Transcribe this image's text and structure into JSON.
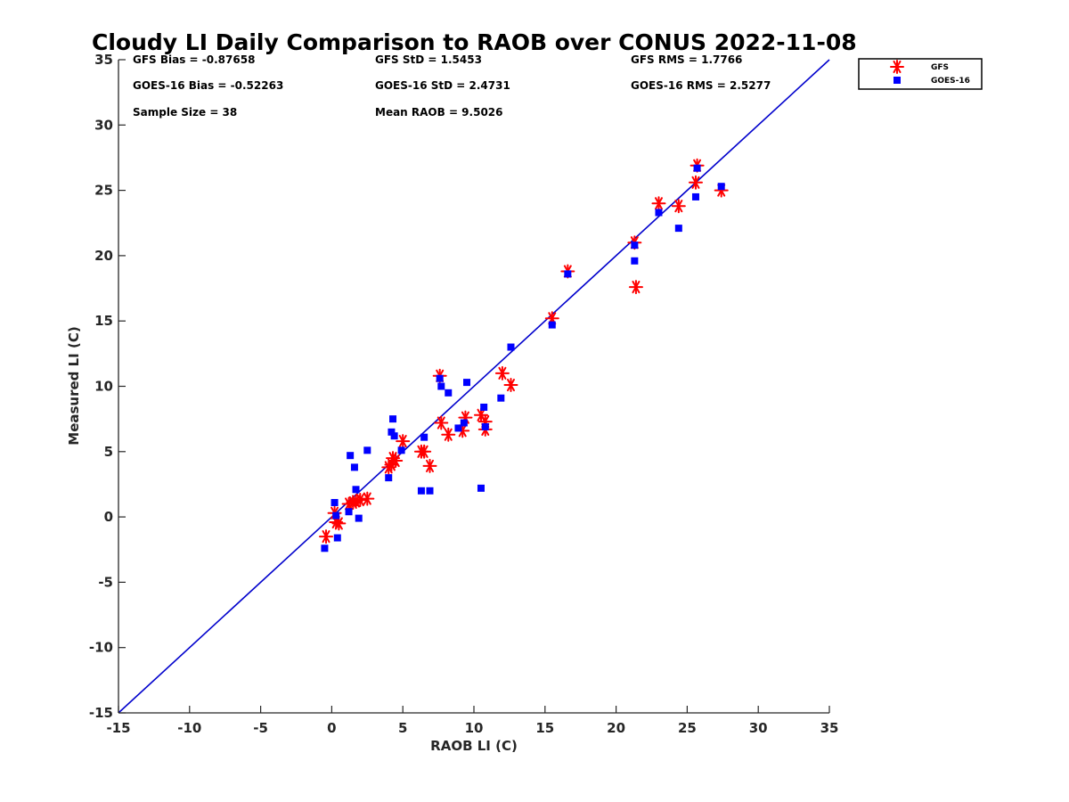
{
  "chart_data": {
    "type": "scatter",
    "title": "Cloudy LI Daily Comparison to RAOB over CONUS 2022-11-08",
    "xlabel": "RAOB LI (C)",
    "ylabel": "Measured LI (C)",
    "xlim": [
      -15,
      35
    ],
    "ylim": [
      -15,
      35
    ],
    "xticks": [
      "-15",
      "-10",
      "-5",
      "0",
      "5",
      "10",
      "15",
      "20",
      "25",
      "30",
      "35"
    ],
    "yticks": [
      "-15",
      "-10",
      "-5",
      "0",
      "5",
      "10",
      "15",
      "20",
      "25",
      "30",
      "35"
    ],
    "grid": false,
    "legend_position": "outside-top-right",
    "stats": [
      "GFS Bias = -0.87658",
      "GFS StD = 1.5453",
      "GFS RMS = 1.7766",
      "GOES-16 Bias = -0.52263",
      "GOES-16 StD = 2.4731",
      "GOES-16 RMS = 2.5277",
      "Sample Size = 38",
      "Mean RAOB = 9.5026"
    ],
    "reference_line": {
      "x": [
        -15,
        35
      ],
      "y": [
        -15,
        35
      ],
      "color": "#0000cc"
    },
    "series": [
      {
        "name": "GFS",
        "marker": "asterisk",
        "color": "#ff0000",
        "points": [
          [
            -0.4,
            -1.5
          ],
          [
            0.2,
            0.3
          ],
          [
            0.3,
            -0.4
          ],
          [
            0.5,
            -0.5
          ],
          [
            1.2,
            1.0
          ],
          [
            1.5,
            1.1
          ],
          [
            1.7,
            1.2
          ],
          [
            2.0,
            1.3
          ],
          [
            2.5,
            1.4
          ],
          [
            4.0,
            3.8
          ],
          [
            4.2,
            4.0
          ],
          [
            4.3,
            4.5
          ],
          [
            4.5,
            4.3
          ],
          [
            5.0,
            5.8
          ],
          [
            6.3,
            5.0
          ],
          [
            6.5,
            5.0
          ],
          [
            6.9,
            3.9
          ],
          [
            7.6,
            10.8
          ],
          [
            7.7,
            7.2
          ],
          [
            8.2,
            6.3
          ],
          [
            9.2,
            6.6
          ],
          [
            9.4,
            7.6
          ],
          [
            10.5,
            7.8
          ],
          [
            10.8,
            6.7
          ],
          [
            10.8,
            7.3
          ],
          [
            12.0,
            11.0
          ],
          [
            12.6,
            10.1
          ],
          [
            15.5,
            15.2
          ],
          [
            16.6,
            18.8
          ],
          [
            21.3,
            21.0
          ],
          [
            21.4,
            17.6
          ],
          [
            23.0,
            24.0
          ],
          [
            24.4,
            23.8
          ],
          [
            25.6,
            25.6
          ],
          [
            25.7,
            26.9
          ],
          [
            27.4,
            25.0
          ]
        ]
      },
      {
        "name": "GOES-16",
        "marker": "square",
        "color": "#0000ff",
        "points": [
          [
            -0.5,
            -2.4
          ],
          [
            0.2,
            1.1
          ],
          [
            0.3,
            0.1
          ],
          [
            0.4,
            -1.6
          ],
          [
            1.2,
            0.4
          ],
          [
            1.3,
            4.7
          ],
          [
            1.6,
            3.8
          ],
          [
            1.7,
            2.1
          ],
          [
            1.9,
            -0.1
          ],
          [
            2.5,
            5.1
          ],
          [
            4.0,
            3.0
          ],
          [
            4.2,
            6.5
          ],
          [
            4.3,
            7.5
          ],
          [
            4.4,
            6.2
          ],
          [
            4.9,
            5.1
          ],
          [
            6.3,
            2.0
          ],
          [
            6.5,
            6.1
          ],
          [
            6.9,
            2.0
          ],
          [
            7.6,
            10.6
          ],
          [
            7.7,
            10.0
          ],
          [
            8.2,
            9.5
          ],
          [
            8.9,
            6.8
          ],
          [
            9.3,
            7.2
          ],
          [
            9.5,
            10.3
          ],
          [
            10.5,
            2.2
          ],
          [
            10.7,
            8.4
          ],
          [
            10.8,
            6.9
          ],
          [
            11.9,
            9.1
          ],
          [
            12.6,
            13.0
          ],
          [
            15.5,
            14.7
          ],
          [
            16.6,
            18.6
          ],
          [
            21.3,
            20.8
          ],
          [
            21.3,
            19.6
          ],
          [
            23.0,
            23.3
          ],
          [
            24.4,
            22.1
          ],
          [
            25.6,
            24.5
          ],
          [
            25.7,
            26.7
          ],
          [
            27.4,
            25.3
          ]
        ]
      }
    ]
  }
}
